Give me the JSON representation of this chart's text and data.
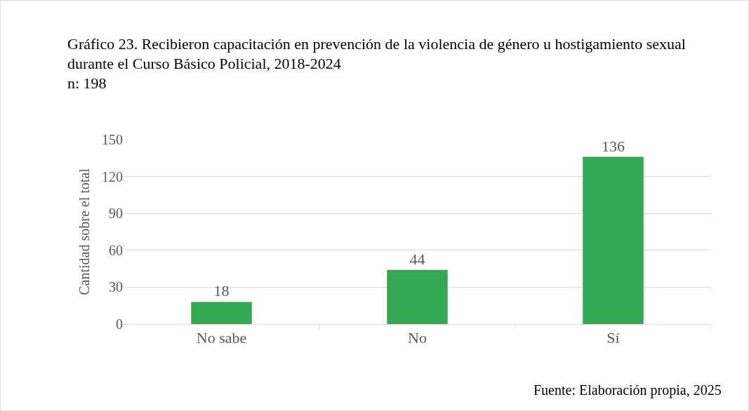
{
  "chart_data": {
    "type": "bar",
    "title": "Gráfico 23.  Recibieron capacitación en prevención de la violencia de género u hostigamiento sexual durante el Curso Básico Policial, 2018-2024",
    "subtitle": "n: 198",
    "ylabel": "Cantidad sobre el total",
    "categories": [
      "No sabe",
      "No",
      "Sí"
    ],
    "values": [
      18,
      44,
      136
    ],
    "color": "#34a853",
    "ylim": [
      0,
      150
    ],
    "yticks": [
      0,
      30,
      60,
      90,
      120,
      150
    ],
    "grid": "y",
    "data_labels": true,
    "legend": false,
    "annotations": [
      "Fuente: Elaboración propia, 2025"
    ]
  }
}
